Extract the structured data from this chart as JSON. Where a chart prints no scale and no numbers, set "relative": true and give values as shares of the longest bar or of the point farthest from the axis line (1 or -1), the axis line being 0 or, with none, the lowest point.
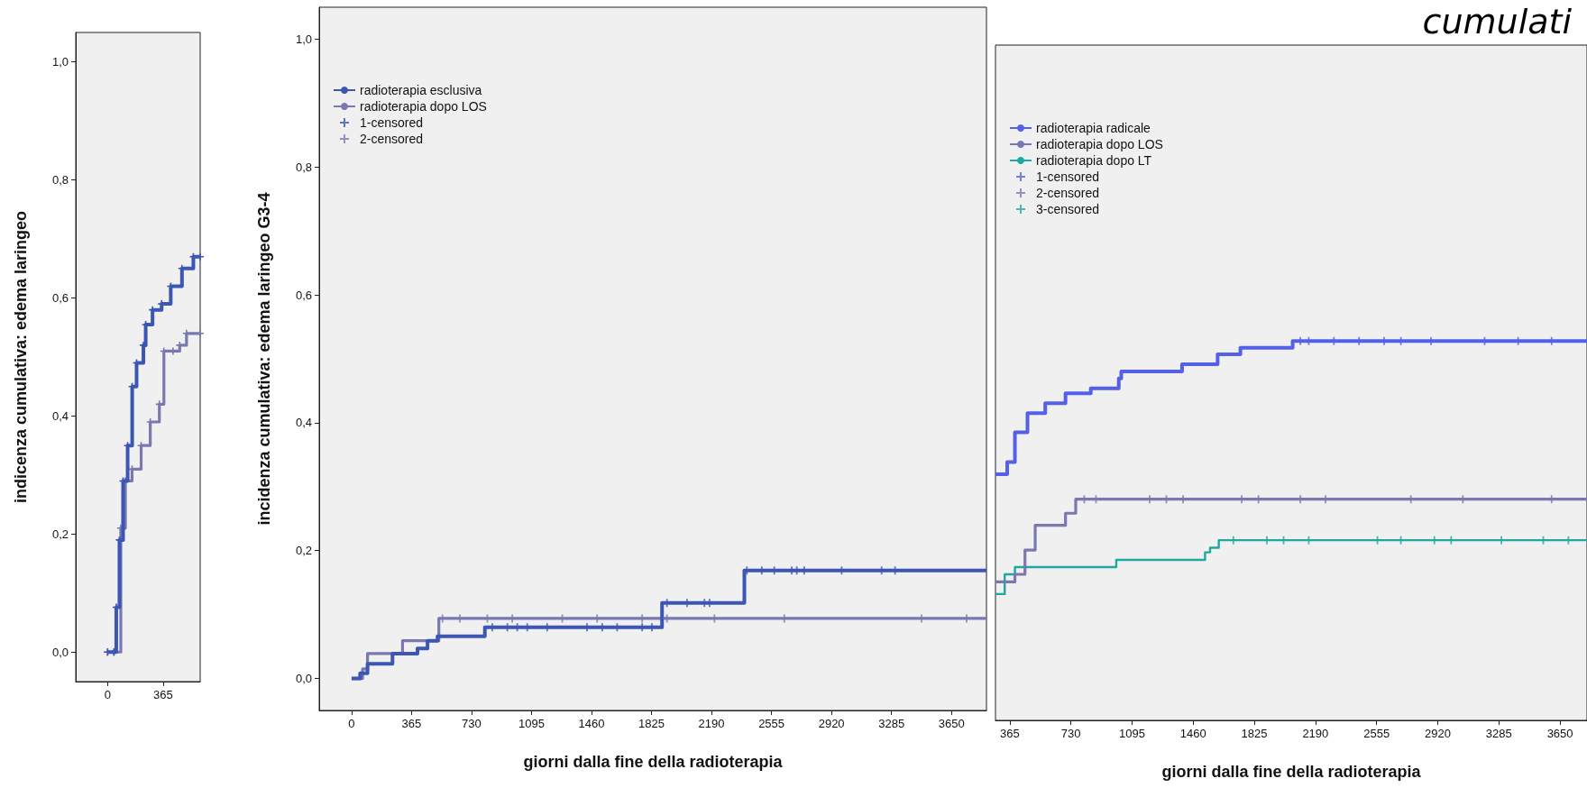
{
  "chart_data": [
    {
      "type": "step",
      "ylabel": "indicenza cumulativa: edema laringeo",
      "xlim": [
        -210,
        610
      ],
      "xticks": [
        0,
        365
      ],
      "ylim": [
        -0.05,
        1.05
      ],
      "yticks": [
        {
          "value": 0,
          "label": "0,0"
        },
        {
          "value": 0.2,
          "label": "0,2"
        },
        {
          "value": 0.4,
          "label": "0,4"
        },
        {
          "value": 0.6,
          "label": "0,6"
        },
        {
          "value": 0.8,
          "label": "0,8"
        },
        {
          "value": 1,
          "label": "1,0"
        }
      ],
      "grid": false,
      "legend": false,
      "marker": "cross",
      "series": [
        {
          "color": "#3c56b4",
          "x": [
            0,
            42,
            57,
            78,
            102,
            132,
            162,
            191,
            236,
            251,
            296,
            356,
            416,
            490,
            565,
            610
          ],
          "values": [
            0,
            0,
            0.076,
            0.19,
            0.29,
            0.35,
            0.45,
            0.49,
            0.52,
            0.555,
            0.58,
            0.59,
            0.62,
            0.65,
            0.67,
            0.67
          ]
        },
        {
          "color": "#7a78b0",
          "x": [
            0,
            42,
            87,
            117,
            161,
            221,
            281,
            341,
            371,
            431,
            475,
            520,
            610
          ],
          "values": [
            0,
            0,
            0.21,
            0.29,
            0.31,
            0.35,
            0.39,
            0.42,
            0.51,
            0.51,
            0.52,
            0.54,
            0.54
          ]
        }
      ]
    },
    {
      "type": "step",
      "xlabel": "giorni dalla fine della radioterapia",
      "ylabel": "incidenza cumulativa: edema laringeo G3-4",
      "xlim": [
        -197,
        3863
      ],
      "xticks": [
        0,
        365,
        730,
        1095,
        1460,
        1825,
        2190,
        2555,
        2920,
        3285,
        3650
      ],
      "ylim": [
        -0.05,
        1.05
      ],
      "yticks": [
        {
          "value": 0,
          "label": "0,0"
        },
        {
          "value": 0.2,
          "label": "0,2"
        },
        {
          "value": 0.4,
          "label": "0,4"
        },
        {
          "value": 0.6,
          "label": "0,6"
        },
        {
          "value": 0.8,
          "label": "0,8"
        },
        {
          "value": 1,
          "label": "1,0"
        }
      ],
      "grid": false,
      "legend": "top left",
      "series": [
        {
          "name": "radioterapia esclusiva",
          "color": "#3c56b4",
          "x": [
            0,
            52,
            97,
            249,
            401,
            462,
            523,
            811,
            1889,
            2390,
            3863
          ],
          "values": [
            0,
            0.008,
            0.023,
            0.039,
            0.047,
            0.059,
            0.066,
            0.08,
            0.118,
            0.169,
            0.169
          ]
        },
        {
          "name": "radioterapia dopo LOS",
          "color": "#7a78b0",
          "x": [
            0,
            67,
            97,
            310,
            531,
            3863
          ],
          "values": [
            0,
            0.015,
            0.039,
            0.059,
            0.094,
            0.094
          ]
        },
        {
          "name": "1-censored",
          "type": "scatter",
          "marker": "cross",
          "color": "#3c56b4",
          "x": [
            856,
            948,
            1008,
            1069,
            1190,
            1433,
            1525,
            1616,
            1768,
            1828,
            1919,
            2041,
            2147,
            2178,
            2405,
            2496,
            2572,
            2678,
            2709,
            2754,
            2982,
            3225,
            3307
          ],
          "values": [
            0.08,
            0.08,
            0.08,
            0.08,
            0.08,
            0.08,
            0.08,
            0.08,
            0.08,
            0.08,
            0.118,
            0.118,
            0.118,
            0.118,
            0.169,
            0.169,
            0.169,
            0.169,
            0.169,
            0.169,
            0.169,
            0.169,
            0.169
          ]
        },
        {
          "name": "2-censored",
          "type": "scatter",
          "marker": "cross",
          "color": "#7a78b0",
          "x": [
            553,
            659,
            826,
            978,
            1282,
            1494,
            1768,
            1919,
            2208,
            2633,
            3468,
            3742
          ],
          "values": [
            0.094,
            0.094,
            0.094,
            0.094,
            0.094,
            0.094,
            0.094,
            0.094,
            0.094,
            0.094,
            0.094,
            0.094
          ]
        }
      ]
    },
    {
      "type": "step",
      "title": "cumulati",
      "xlabel": "giorni dalla fine della radioterapia",
      "relative": true,
      "xlim": [
        280,
        3811
      ],
      "xticks": [
        365,
        730,
        1095,
        1460,
        1825,
        2190,
        2555,
        2920,
        3285,
        3650
      ],
      "grid": false,
      "legend": "top left",
      "series": [
        {
          "name": "radioterapia radicale",
          "color": "#5560e8",
          "x": [
            280,
            350,
            396,
            471,
            577,
            698,
            849,
            1016,
            1031,
            1394,
            1606,
            1742,
            2054,
            3811
          ],
          "values": [
            0.649,
            0.681,
            0.759,
            0.81,
            0.836,
            0.862,
            0.875,
            0.901,
            0.92,
            0.939,
            0.965,
            0.982,
            1,
            1
          ]
        },
        {
          "name": "radioterapia dopo LOS",
          "color": "#7a78b0",
          "x": [
            280,
            396,
            456,
            517,
            698,
            759,
            3811
          ],
          "values": [
            0.365,
            0.385,
            0.449,
            0.514,
            0.546,
            0.583,
            0.583
          ]
        },
        {
          "name": "radioterapia dopo LT",
          "color": "#1fa8a0",
          "x": [
            280,
            335,
            396,
            1001,
            1531,
            1561,
            1613,
            3811
          ],
          "values": [
            0.333,
            0.385,
            0.404,
            0.423,
            0.443,
            0.455,
            0.475,
            0.475
          ]
        },
        {
          "name": "1-censored",
          "type": "scatter",
          "marker": "cross",
          "color": "#5560e8",
          "x": [
            2100,
            2150,
            2300,
            2450,
            2600,
            2700,
            2880,
            3200,
            3400,
            3600
          ],
          "values": [
            1,
            1,
            1,
            1,
            1,
            1,
            1,
            1,
            1,
            1
          ]
        },
        {
          "name": "2-censored",
          "type": "scatter",
          "marker": "cross",
          "color": "#7a78b0",
          "x": [
            810,
            880,
            1200,
            1300,
            1400,
            1750,
            1850,
            2100,
            2250,
            2760,
            3070,
            3600
          ],
          "values": [
            0.583,
            0.583,
            0.583,
            0.583,
            0.583,
            0.583,
            0.583,
            0.583,
            0.583,
            0.583,
            0.583,
            0.583
          ]
        },
        {
          "name": "3-censored",
          "type": "scatter",
          "marker": "cross",
          "color": "#1fa8a0",
          "x": [
            1700,
            1900,
            2000,
            2150,
            2560,
            2700,
            2900,
            3000,
            3300,
            3550,
            3700
          ],
          "values": [
            0.475,
            0.475,
            0.475,
            0.475,
            0.475,
            0.475,
            0.475,
            0.475,
            0.475,
            0.475,
            0.475
          ]
        }
      ]
    }
  ]
}
